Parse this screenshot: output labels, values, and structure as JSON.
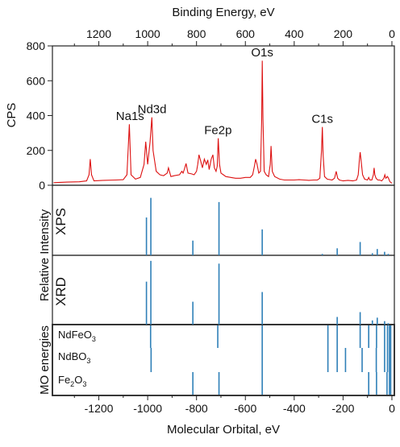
{
  "chart_data": {
    "type": "line",
    "title": "",
    "top_axis": {
      "label": "Binding Energy, eV",
      "range": [
        1390,
        -10
      ],
      "ticks": [
        1200,
        1000,
        800,
        600,
        400,
        200,
        0
      ]
    },
    "bottom_axis": {
      "label": "Molecular Orbital, eV",
      "range": [
        -1390,
        10
      ],
      "ticks": [
        -1200,
        -1000,
        -800,
        -600,
        -400,
        -200,
        0
      ]
    },
    "left_axis_label": "Relative Intensity",
    "mo_axis_label": "MO energies",
    "xps_spectrum": {
      "ylabel": "CPS",
      "ylim": [
        0,
        800
      ],
      "yticks": [
        0,
        200,
        400,
        600,
        800
      ],
      "line_color": "#dd1111",
      "points": [
        [
          1385,
          15
        ],
        [
          1330,
          18
        ],
        [
          1280,
          20
        ],
        [
          1250,
          25
        ],
        [
          1240,
          60
        ],
        [
          1235,
          150
        ],
        [
          1230,
          60
        ],
        [
          1220,
          25
        ],
        [
          1180,
          28
        ],
        [
          1130,
          30
        ],
        [
          1100,
          32
        ],
        [
          1085,
          60
        ],
        [
          1075,
          350
        ],
        [
          1068,
          60
        ],
        [
          1050,
          35
        ],
        [
          1030,
          45
        ],
        [
          1015,
          120
        ],
        [
          1008,
          250
        ],
        [
          1000,
          120
        ],
        [
          990,
          250
        ],
        [
          983,
          390
        ],
        [
          978,
          200
        ],
        [
          965,
          80
        ],
        [
          950,
          60
        ],
        [
          935,
          55
        ],
        [
          920,
          70
        ],
        [
          915,
          100
        ],
        [
          905,
          50
        ],
        [
          890,
          55
        ],
        [
          870,
          60
        ],
        [
          860,
          80
        ],
        [
          855,
          70
        ],
        [
          850,
          90
        ],
        [
          843,
          125
        ],
        [
          835,
          70
        ],
        [
          820,
          65
        ],
        [
          810,
          60
        ],
        [
          800,
          80
        ],
        [
          795,
          120
        ],
        [
          790,
          175
        ],
        [
          783,
          140
        ],
        [
          776,
          100
        ],
        [
          768,
          150
        ],
        [
          760,
          120
        ],
        [
          754,
          145
        ],
        [
          748,
          90
        ],
        [
          740,
          150
        ],
        [
          733,
          175
        ],
        [
          727,
          100
        ],
        [
          720,
          80
        ],
        [
          715,
          110
        ],
        [
          711,
          270
        ],
        [
          706,
          120
        ],
        [
          700,
          70
        ],
        [
          690,
          60
        ],
        [
          680,
          50
        ],
        [
          660,
          45
        ],
        [
          640,
          40
        ],
        [
          620,
          40
        ],
        [
          600,
          45
        ],
        [
          580,
          45
        ],
        [
          570,
          60
        ],
        [
          563,
          110
        ],
        [
          558,
          150
        ],
        [
          552,
          120
        ],
        [
          545,
          70
        ],
        [
          538,
          80
        ],
        [
          533,
          380
        ],
        [
          531,
          715
        ],
        [
          528,
          380
        ],
        [
          523,
          80
        ],
        [
          515,
          60
        ],
        [
          505,
          50
        ],
        [
          498,
          120
        ],
        [
          495,
          225
        ],
        [
          490,
          80
        ],
        [
          480,
          50
        ],
        [
          460,
          35
        ],
        [
          440,
          30
        ],
        [
          420,
          30
        ],
        [
          400,
          30
        ],
        [
          380,
          32
        ],
        [
          360,
          30
        ],
        [
          340,
          28
        ],
        [
          320,
          30
        ],
        [
          305,
          30
        ],
        [
          295,
          40
        ],
        [
          288,
          200
        ],
        [
          285,
          335
        ],
        [
          282,
          180
        ],
        [
          276,
          50
        ],
        [
          265,
          35
        ],
        [
          245,
          30
        ],
        [
          235,
          40
        ],
        [
          228,
          80
        ],
        [
          222,
          40
        ],
        [
          215,
          30
        ],
        [
          200,
          25
        ],
        [
          180,
          28
        ],
        [
          160,
          25
        ],
        [
          145,
          30
        ],
        [
          138,
          60
        ],
        [
          133,
          150
        ],
        [
          130,
          190
        ],
        [
          126,
          140
        ],
        [
          120,
          60
        ],
        [
          112,
          35
        ],
        [
          100,
          30
        ],
        [
          95,
          45
        ],
        [
          90,
          30
        ],
        [
          82,
          30
        ],
        [
          76,
          60
        ],
        [
          73,
          100
        ],
        [
          70,
          60
        ],
        [
          65,
          40
        ],
        [
          58,
          30
        ],
        [
          50,
          30
        ],
        [
          42,
          25
        ],
        [
          33,
          40
        ],
        [
          29,
          60
        ],
        [
          25,
          40
        ],
        [
          18,
          50
        ],
        [
          14,
          40
        ],
        [
          8,
          20
        ],
        [
          0,
          12
        ]
      ],
      "peak_labels": [
        {
          "text": "Na1s",
          "x": 1072,
          "y": 365
        },
        {
          "text": "Nd3d",
          "x": 982,
          "y": 405
        },
        {
          "text": "Fe2p",
          "x": 712,
          "y": 285
        },
        {
          "text": "O1s",
          "x": 531,
          "y": 730
        },
        {
          "text": "C1s",
          "x": 285,
          "y": 350
        }
      ]
    },
    "xps_lines": {
      "label": "XPS",
      "color": "#2f80b8",
      "lines": [
        [
          -1005,
          0.54
        ],
        [
          -987,
          0.82
        ],
        [
          -815,
          0.21
        ],
        [
          -708,
          0.76
        ],
        [
          -531,
          0.37
        ],
        [
          -285,
          0.02
        ],
        [
          -224,
          0.1
        ],
        [
          -130,
          0.19
        ],
        [
          -80,
          0.03
        ],
        [
          -60,
          0.09
        ],
        [
          -30,
          0.05
        ],
        [
          -15,
          0.02
        ]
      ]
    },
    "xrd_lines": {
      "label": "XRD",
      "color": "#2f80b8",
      "lines": [
        [
          -1005,
          0.62
        ],
        [
          -987,
          0.92
        ],
        [
          -815,
          0.33
        ],
        [
          -708,
          0.88
        ],
        [
          -531,
          0.47
        ],
        [
          -224,
          0.11
        ],
        [
          -130,
          0.18
        ],
        [
          -80,
          0.06
        ],
        [
          -60,
          0.1
        ],
        [
          -30,
          0.05
        ],
        [
          -15,
          0.02
        ]
      ]
    },
    "mo_energies": {
      "color": "#2f80b8",
      "compounds": [
        {
          "name": "NdFeO",
          "subscript": "3",
          "lines": [
            -988,
            -713,
            -531,
            -262,
            -224,
            -130,
            -95,
            -63,
            -30,
            -18,
            -10,
            -5
          ]
        },
        {
          "name": "NdBO",
          "subscript": "3",
          "lines": [
            -986,
            -531,
            -262,
            -224,
            -190,
            -122,
            -64,
            -30,
            -18,
            -10,
            -5
          ]
        },
        {
          "name": "Fe",
          "subscript": "2",
          "name_suffix": "O",
          "subscript_suffix": "3",
          "lines": [
            -815,
            -708,
            -531,
            -95,
            -63,
            -20,
            -10,
            -5
          ]
        }
      ]
    }
  }
}
